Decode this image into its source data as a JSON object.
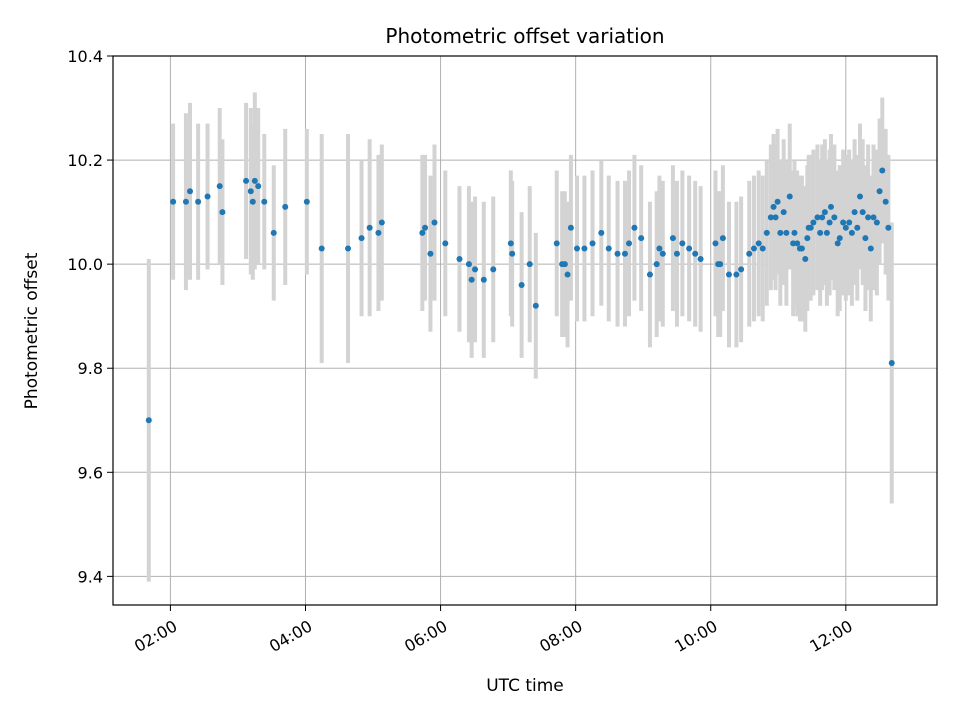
{
  "chart_data": {
    "type": "scatter",
    "title": "Photometric offset variation",
    "xlabel": "UTC time",
    "ylabel": "Photometric offset",
    "grid": true,
    "x_unit": "hours UTC",
    "xlim": [
      0.65,
      12.85
    ],
    "ylim": [
      9.345,
      10.4
    ],
    "x_ticks": [
      {
        "value": 1.5,
        "label": "02:00"
      },
      {
        "value": 3.5,
        "label": "04:00"
      },
      {
        "value": 5.5,
        "label": "06:00"
      },
      {
        "value": 7.5,
        "label": "08:00"
      },
      {
        "value": 9.5,
        "label": "10:00"
      },
      {
        "value": 11.5,
        "label": "12:00"
      }
    ],
    "y_ticks": [
      {
        "value": 9.4,
        "label": "9.4"
      },
      {
        "value": 9.6,
        "label": "9.6"
      },
      {
        "value": 9.8,
        "label": "9.8"
      },
      {
        "value": 10.0,
        "label": "10.0"
      },
      {
        "value": 10.2,
        "label": "10.2"
      },
      {
        "value": 10.4,
        "label": "10.4"
      }
    ],
    "colors": {
      "point": "#1f77b4",
      "errorbar": "#d3d3d3",
      "grid": "#b0b0b0"
    },
    "series": [
      {
        "name": "offset",
        "x": [
          1.18,
          1.54,
          1.73,
          1.79,
          1.91,
          2.05,
          2.23,
          2.27,
          2.62,
          2.69,
          2.72,
          2.75,
          2.8,
          2.89,
          3.03,
          3.2,
          3.52,
          3.74,
          4.13,
          4.33,
          4.45,
          4.58,
          4.63,
          5.23,
          5.27,
          5.35,
          5.41,
          5.57,
          5.78,
          5.92,
          5.96,
          6.01,
          6.14,
          6.28,
          6.54,
          6.56,
          6.7,
          6.82,
          6.91,
          7.22,
          7.3,
          7.34,
          7.38,
          7.43,
          7.52,
          7.63,
          7.75,
          7.88,
          7.99,
          8.12,
          8.23,
          8.29,
          8.37,
          8.47,
          8.6,
          8.7,
          8.74,
          8.79,
          8.94,
          9.0,
          9.08,
          9.18,
          9.27,
          9.35,
          9.57,
          9.61,
          9.64,
          9.68,
          9.77,
          9.88,
          9.95,
          10.07,
          10.14,
          10.21,
          10.27,
          10.33,
          10.39,
          10.43,
          10.46,
          10.49,
          10.53,
          10.58,
          10.62,
          10.67,
          10.72,
          10.74,
          10.78,
          10.82,
          10.85,
          10.9,
          10.93,
          10.95,
          10.98,
          11.02,
          11.08,
          11.12,
          11.15,
          11.19,
          11.22,
          11.26,
          11.28,
          11.33,
          11.38,
          11.41,
          11.46,
          11.5,
          11.55,
          11.59,
          11.63,
          11.67,
          11.71,
          11.75,
          11.79,
          11.83,
          11.87,
          11.91,
          11.96,
          12.0,
          12.04,
          12.09,
          12.13,
          12.18
        ],
        "y": [
          9.7,
          10.12,
          10.12,
          10.14,
          10.12,
          10.13,
          10.15,
          10.1,
          10.16,
          10.14,
          10.12,
          10.16,
          10.15,
          10.12,
          10.06,
          10.11,
          10.12,
          10.03,
          10.03,
          10.05,
          10.07,
          10.06,
          10.08,
          10.06,
          10.07,
          10.02,
          10.08,
          10.04,
          10.01,
          10.0,
          9.97,
          9.99,
          9.97,
          9.99,
          10.04,
          10.02,
          9.96,
          10.0,
          9.92,
          10.04,
          10.0,
          10.0,
          9.98,
          10.07,
          10.03,
          10.03,
          10.04,
          10.06,
          10.03,
          10.02,
          10.02,
          10.04,
          10.07,
          10.05,
          9.98,
          10.0,
          10.03,
          10.02,
          10.05,
          10.02,
          10.04,
          10.03,
          10.02,
          10.01,
          10.04,
          10.0,
          10.0,
          10.05,
          9.98,
          9.98,
          9.99,
          10.02,
          10.03,
          10.04,
          10.03,
          10.06,
          10.09,
          10.11,
          10.09,
          10.12,
          10.06,
          10.1,
          10.06,
          10.13,
          10.04,
          10.06,
          10.04,
          10.03,
          10.03,
          10.01,
          10.05,
          10.07,
          10.07,
          10.08,
          10.09,
          10.06,
          10.09,
          10.1,
          10.06,
          10.08,
          10.11,
          10.09,
          10.04,
          10.05,
          10.08,
          10.07,
          10.08,
          10.06,
          10.1,
          10.07,
          10.13,
          10.1,
          10.05,
          10.09,
          10.03,
          10.09,
          10.08,
          10.14,
          10.18,
          10.12,
          10.07,
          9.81
        ],
        "err": [
          0.31,
          0.15,
          0.17,
          0.17,
          0.15,
          0.14,
          0.15,
          0.14,
          0.15,
          0.16,
          0.15,
          0.17,
          0.15,
          0.13,
          0.13,
          0.15,
          0.14,
          0.22,
          0.22,
          0.15,
          0.17,
          0.15,
          0.15,
          0.15,
          0.14,
          0.15,
          0.15,
          0.14,
          0.14,
          0.15,
          0.15,
          0.14,
          0.15,
          0.14,
          0.14,
          0.14,
          0.14,
          0.15,
          0.14,
          0.14,
          0.14,
          0.14,
          0.14,
          0.14,
          0.14,
          0.14,
          0.14,
          0.14,
          0.14,
          0.14,
          0.14,
          0.14,
          0.14,
          0.14,
          0.14,
          0.14,
          0.14,
          0.14,
          0.14,
          0.14,
          0.14,
          0.14,
          0.14,
          0.14,
          0.14,
          0.14,
          0.14,
          0.14,
          0.14,
          0.14,
          0.14,
          0.14,
          0.14,
          0.14,
          0.14,
          0.14,
          0.14,
          0.14,
          0.14,
          0.14,
          0.14,
          0.14,
          0.14,
          0.14,
          0.14,
          0.14,
          0.14,
          0.14,
          0.14,
          0.14,
          0.14,
          0.14,
          0.14,
          0.14,
          0.14,
          0.14,
          0.14,
          0.14,
          0.14,
          0.14,
          0.14,
          0.14,
          0.14,
          0.14,
          0.14,
          0.14,
          0.14,
          0.14,
          0.14,
          0.14,
          0.14,
          0.14,
          0.14,
          0.14,
          0.14,
          0.14,
          0.14,
          0.14,
          0.14,
          0.14,
          0.14,
          0.27
        ]
      }
    ]
  }
}
